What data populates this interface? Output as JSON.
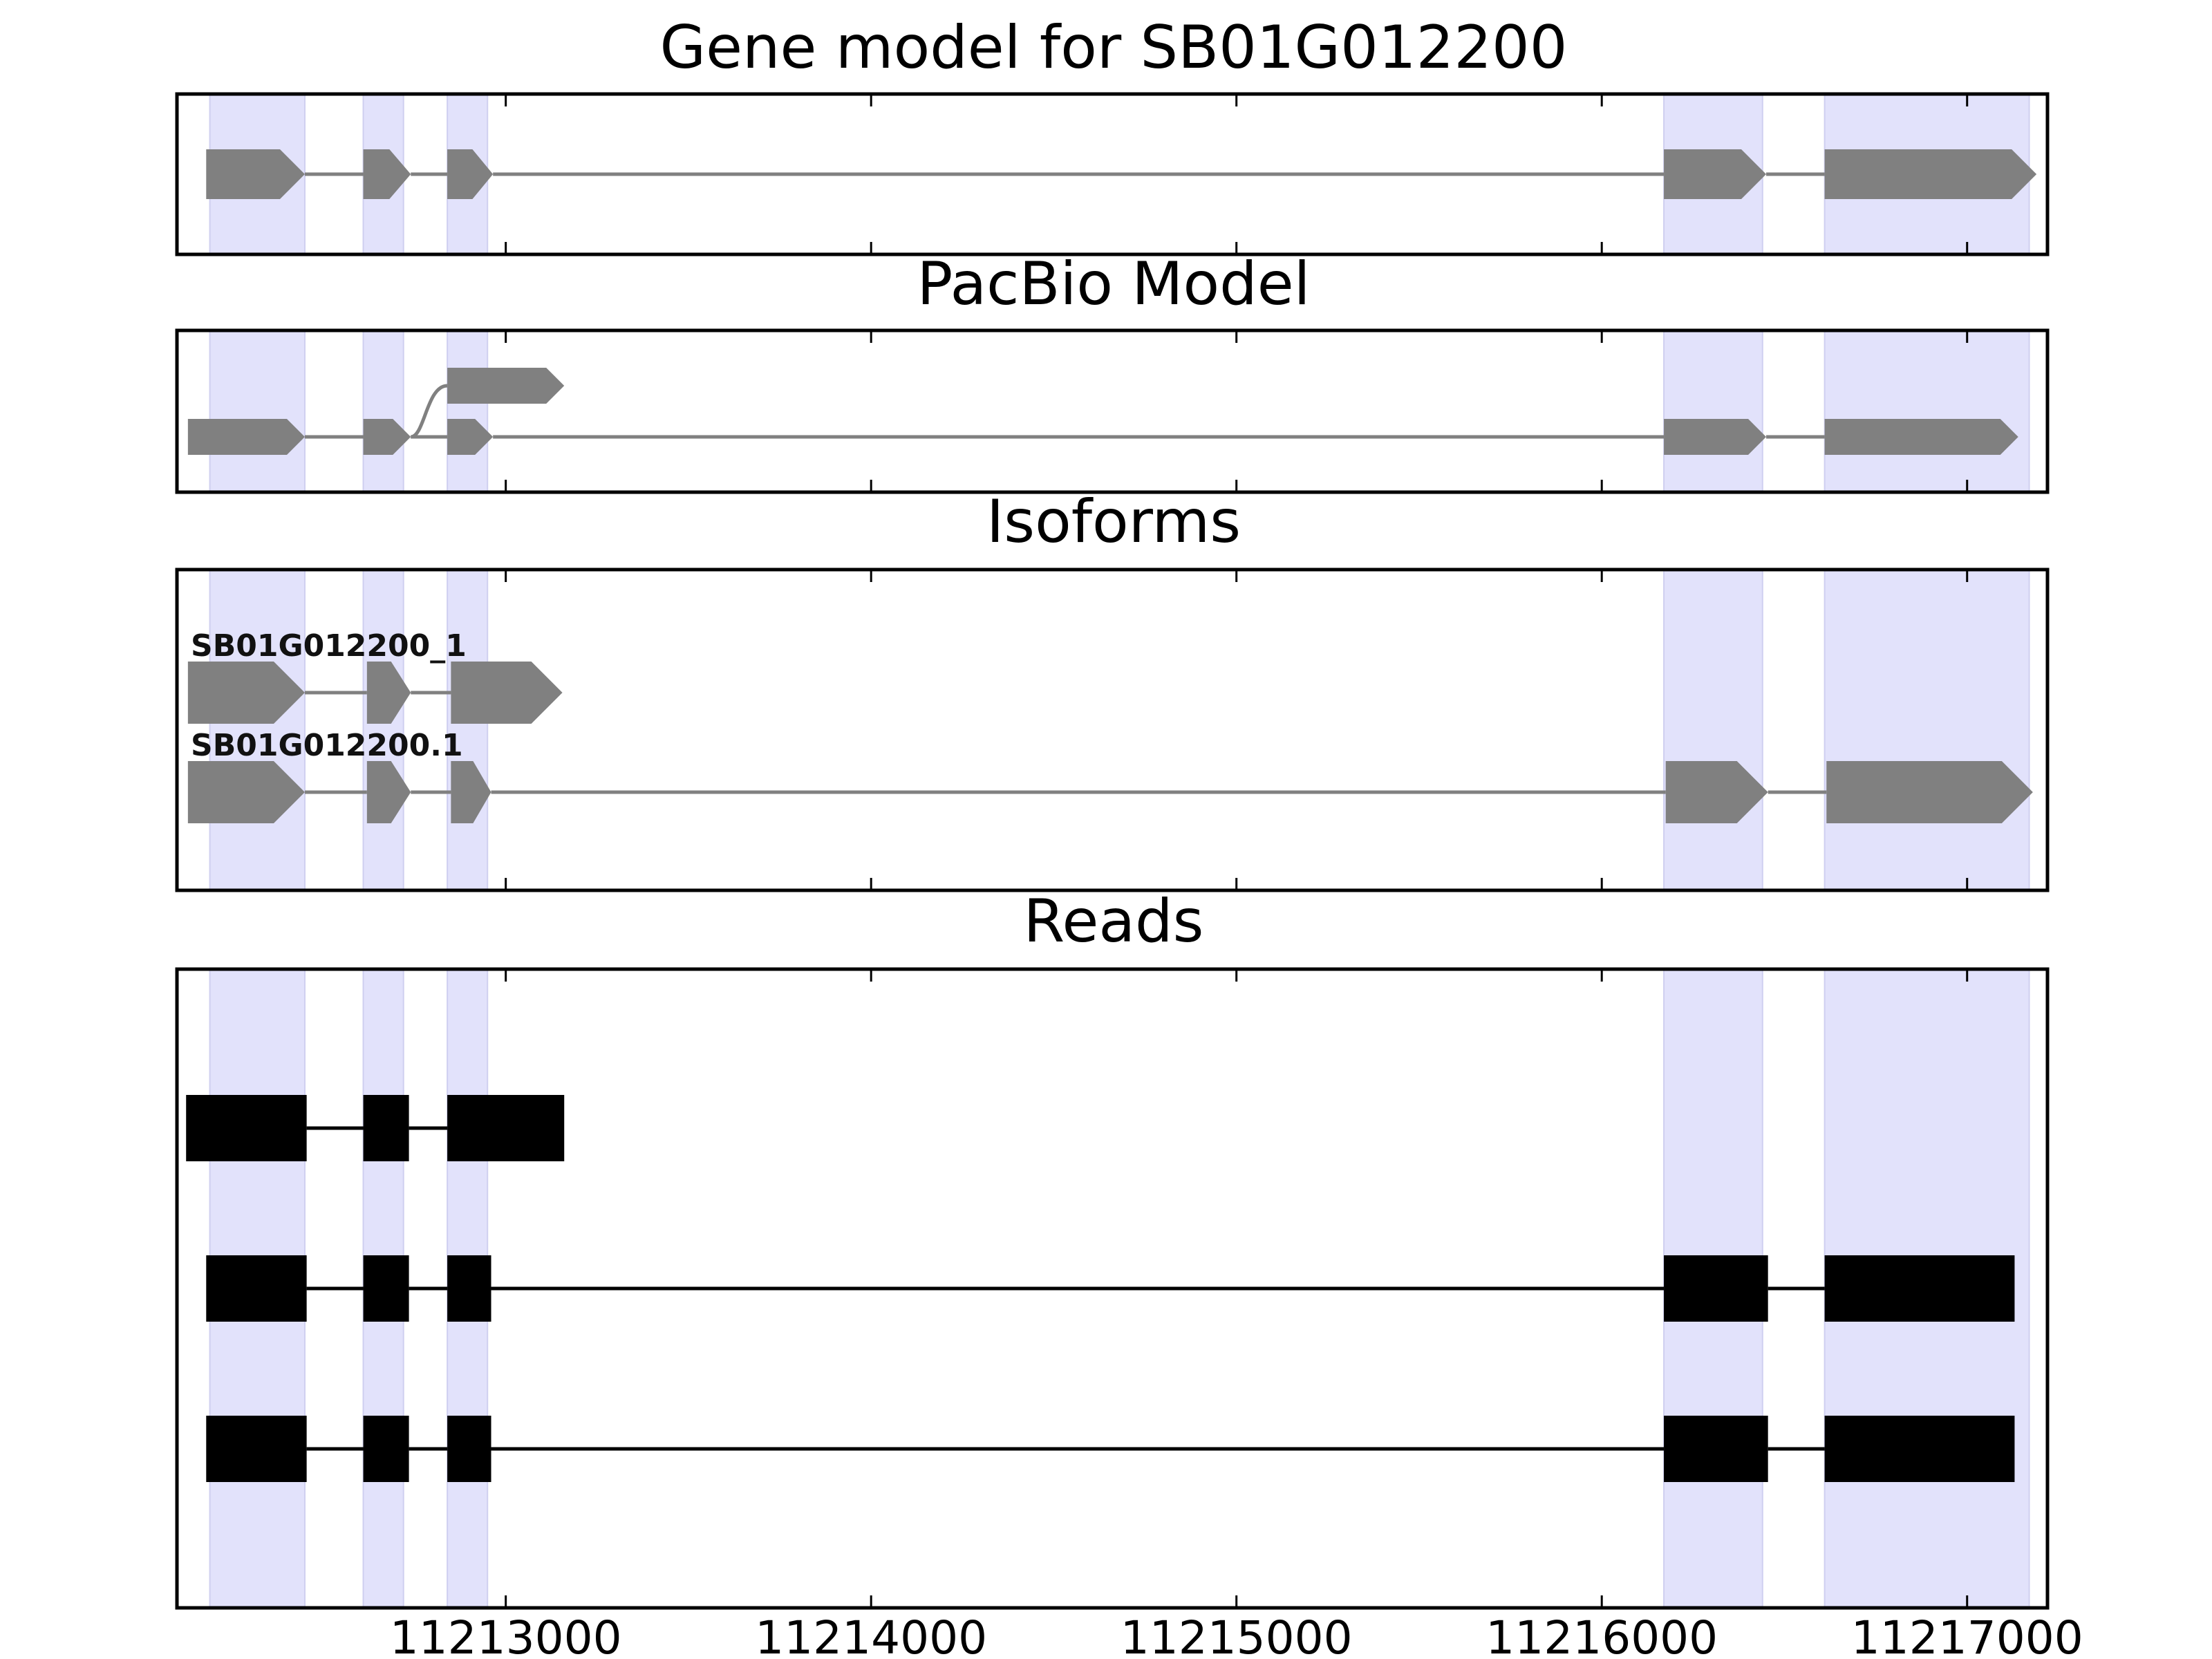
{
  "figure": {
    "x_range": [
      11212100,
      11217220
    ],
    "x_ticks": [
      11213000,
      11214000,
      11215000,
      11216000,
      11217000
    ],
    "colors": {
      "exon_band": "#e2e2fb",
      "band_edge": "#cfcff0",
      "feature": "#808080",
      "read": "#000000",
      "frame": "#000000"
    },
    "exon_bands": [
      [
        11212190,
        11212450
      ],
      [
        11212610,
        11212720
      ],
      [
        11212840,
        11212950
      ],
      [
        11216170,
        11216440
      ],
      [
        11216610,
        11217170
      ]
    ]
  },
  "panels": [
    {
      "key": "gene_model",
      "title": "Gene model for SB01G012200",
      "tracks": [
        {
          "label": "",
          "style": "arrow",
          "exons": [
            [
              11212180,
              11212450
            ],
            [
              11212610,
              11212740
            ],
            [
              11212840,
              11212965
            ],
            [
              11216170,
              11216450
            ],
            [
              11216610,
              11217190
            ]
          ]
        }
      ]
    },
    {
      "key": "pacbio_model",
      "title": "PacBio Model",
      "tracks": [
        {
          "label": "",
          "style": "arrow-small",
          "exons": [
            [
              11212130,
              11212450
            ],
            [
              11212610,
              11212740
            ],
            [
              11212840,
              11213160
            ]
          ],
          "branch_from_exon": 1
        },
        {
          "label": "",
          "style": "arrow-small",
          "exons": [
            [
              11212130,
              11212450
            ],
            [
              11212610,
              11212740
            ],
            [
              11212840,
              11212965
            ],
            [
              11216170,
              11216450
            ],
            [
              11216610,
              11217140
            ]
          ]
        }
      ]
    },
    {
      "key": "isoforms",
      "title": "Isoforms",
      "tracks": [
        {
          "label": "SB01G012200_1",
          "style": "arrow-large",
          "exons": [
            [
              11212130,
              11212450
            ],
            [
              11212620,
              11212740
            ],
            [
              11212850,
              11213155
            ]
          ]
        },
        {
          "label": "SB01G012200.1",
          "style": "arrow-large",
          "exons": [
            [
              11212130,
              11212450
            ],
            [
              11212620,
              11212740
            ],
            [
              11212850,
              11212960
            ],
            [
              11216175,
              11216455
            ],
            [
              11216615,
              11217180
            ]
          ]
        }
      ]
    },
    {
      "key": "reads",
      "title": "Reads",
      "tracks": [
        {
          "label": "",
          "style": "block",
          "exons": [
            [
              11212125,
              11212455
            ],
            [
              11212610,
              11212735
            ],
            [
              11212840,
              11213160
            ]
          ]
        },
        {
          "label": "",
          "style": "block",
          "exons": [
            [
              11212180,
              11212455
            ],
            [
              11212610,
              11212735
            ],
            [
              11212840,
              11212960
            ],
            [
              11216170,
              11216455
            ],
            [
              11216610,
              11217130
            ]
          ]
        },
        {
          "label": "",
          "style": "block",
          "exons": [
            [
              11212180,
              11212455
            ],
            [
              11212610,
              11212735
            ],
            [
              11212840,
              11212960
            ],
            [
              11216170,
              11216455
            ],
            [
              11216610,
              11217130
            ]
          ]
        }
      ]
    }
  ]
}
